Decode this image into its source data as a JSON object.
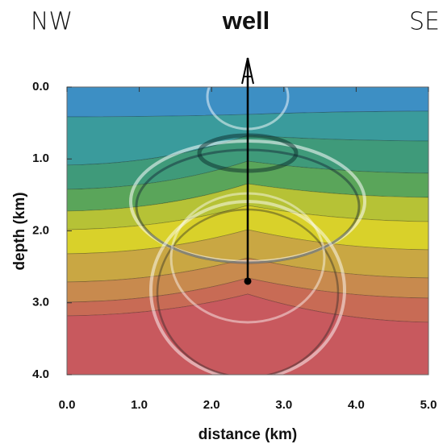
{
  "chart_data": {
    "type": "section",
    "title": "well",
    "annotations": [
      "NW",
      "SE"
    ],
    "xlabel": "distance (km)",
    "ylabel": "depth (km)",
    "xlim": [
      0,
      5
    ],
    "ylim": [
      0,
      4
    ],
    "xticks": [
      {
        "value": 0,
        "label": "0.0"
      },
      {
        "value": 1,
        "label": "1.0"
      },
      {
        "value": 2,
        "label": "2.0"
      },
      {
        "value": 3,
        "label": "3.0"
      },
      {
        "value": 4,
        "label": "4.0"
      },
      {
        "value": 5,
        "label": "5.0"
      }
    ],
    "yticks": [
      {
        "value": 0,
        "label": "0.0"
      },
      {
        "value": 1,
        "label": "1.0"
      },
      {
        "value": 2,
        "label": "2.0"
      },
      {
        "value": 3,
        "label": "3.0"
      },
      {
        "value": 4,
        "label": "4.0"
      }
    ],
    "y_inverted": true,
    "well": {
      "x": 2.5,
      "depth": 2.7
    }
  }
}
